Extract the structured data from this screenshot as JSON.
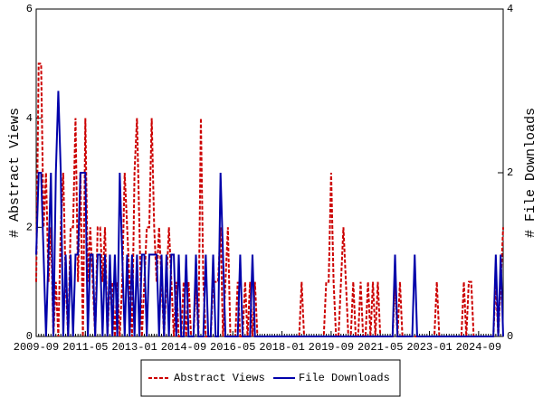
{
  "chart_data": {
    "type": "line",
    "x": [
      "2009-09",
      "2009-10",
      "2009-11",
      "2009-12",
      "2010-01",
      "2010-02",
      "2010-03",
      "2010-04",
      "2010-05",
      "2010-06",
      "2010-07",
      "2010-08",
      "2010-09",
      "2010-10",
      "2010-11",
      "2010-12",
      "2011-01",
      "2011-02",
      "2011-03",
      "2011-04",
      "2011-05",
      "2011-06",
      "2011-07",
      "2011-08",
      "2011-09",
      "2011-10",
      "2011-11",
      "2011-12",
      "2012-01",
      "2012-02",
      "2012-03",
      "2012-04",
      "2012-05",
      "2012-06",
      "2012-07",
      "2012-08",
      "2012-09",
      "2012-10",
      "2012-11",
      "2012-12",
      "2013-01",
      "2013-02",
      "2013-03",
      "2013-04",
      "2013-05",
      "2013-06",
      "2013-07",
      "2013-08",
      "2013-09",
      "2013-10",
      "2013-11",
      "2013-12",
      "2014-01",
      "2014-02",
      "2014-03",
      "2014-04",
      "2014-05",
      "2014-06",
      "2014-07",
      "2014-08",
      "2014-09",
      "2014-10",
      "2014-11",
      "2014-12",
      "2015-01",
      "2015-02",
      "2015-03",
      "2015-04",
      "2015-05",
      "2015-06",
      "2015-07",
      "2015-08",
      "2015-09",
      "2015-10",
      "2015-11",
      "2015-12",
      "2016-01",
      "2016-02",
      "2016-03",
      "2016-04",
      "2016-05",
      "2016-06",
      "2016-07",
      "2016-08",
      "2016-09",
      "2016-10",
      "2016-11",
      "2016-12",
      "2017-01",
      "2017-02",
      "2017-03",
      "2017-04",
      "2017-05",
      "2017-06",
      "2017-07",
      "2017-08",
      "2017-09",
      "2017-10",
      "2017-11",
      "2017-12",
      "2018-01",
      "2018-02",
      "2018-03",
      "2018-04",
      "2018-05",
      "2018-06",
      "2018-07",
      "2018-08",
      "2018-09",
      "2018-10",
      "2018-11",
      "2018-12",
      "2019-01",
      "2019-02",
      "2019-03",
      "2019-04",
      "2019-05",
      "2019-06",
      "2019-07",
      "2019-08",
      "2019-09",
      "2019-10",
      "2019-11",
      "2019-12",
      "2020-01",
      "2020-02",
      "2020-03",
      "2020-04",
      "2020-05",
      "2020-06",
      "2020-07",
      "2020-08",
      "2020-09",
      "2020-10",
      "2020-11",
      "2020-12",
      "2021-01",
      "2021-02",
      "2021-03",
      "2021-04",
      "2021-05",
      "2021-06",
      "2021-07",
      "2021-08",
      "2021-09",
      "2021-10",
      "2021-11",
      "2021-12",
      "2022-01",
      "2022-02",
      "2022-03",
      "2022-04",
      "2022-05",
      "2022-06",
      "2022-07",
      "2022-08",
      "2022-09",
      "2022-10",
      "2022-11",
      "2022-12",
      "2023-01",
      "2023-02",
      "2023-03",
      "2023-04",
      "2023-05",
      "2023-06",
      "2023-07",
      "2023-08",
      "2023-09",
      "2023-10",
      "2023-11",
      "2023-12",
      "2024-01",
      "2024-02",
      "2024-03",
      "2024-04",
      "2024-05",
      "2024-06",
      "2024-07",
      "2024-08",
      "2024-09",
      "2024-10",
      "2024-11",
      "2024-12",
      "2025-01",
      "2025-02",
      "2025-03",
      "2025-04",
      "2025-05",
      "2025-06",
      "2025-07"
    ],
    "xticks": [
      "2009-09",
      "2011-05",
      "2013-01",
      "2014-09",
      "2016-05",
      "2018-01",
      "2019-09",
      "2021-05",
      "2023-01",
      "2024-09"
    ],
    "ylabel": "# Abstract Views",
    "y2label": "# File Downloads",
    "ylim": [
      0,
      6
    ],
    "yticks": [
      0,
      2,
      4,
      6
    ],
    "y2lim": [
      0,
      4
    ],
    "y2ticks": [
      0,
      2,
      4
    ],
    "series": [
      {
        "name": "Abstract Views",
        "color": "#cc0000",
        "dashed": true,
        "values": [
          1,
          5,
          5,
          2,
          3,
          1,
          2,
          0,
          1,
          0,
          2,
          3,
          1,
          0,
          2,
          2,
          4,
          1,
          3,
          0,
          4,
          1,
          2,
          1,
          0,
          2,
          2,
          1,
          2,
          0,
          1,
          1,
          0,
          1,
          0,
          1,
          3,
          2,
          1,
          0,
          3,
          4,
          2,
          0,
          1,
          2,
          2,
          4,
          2,
          1,
          2,
          1,
          0,
          1,
          2,
          1,
          0,
          1,
          0,
          0,
          1,
          0,
          1,
          0,
          0,
          1,
          0,
          4,
          1,
          0,
          0,
          0,
          1,
          1,
          1,
          2,
          0,
          1,
          2,
          0,
          0,
          0,
          1,
          0,
          0,
          1,
          0,
          1,
          0,
          1,
          0,
          0,
          0,
          0,
          0,
          0,
          0,
          0,
          0,
          0,
          0,
          0,
          0,
          0,
          0,
          0,
          0,
          0,
          1,
          0,
          0,
          0,
          0,
          0,
          0,
          0,
          0,
          0,
          1,
          1,
          3,
          1,
          0,
          0,
          1,
          2,
          1,
          0,
          0,
          1,
          0,
          0,
          1,
          0,
          0,
          1,
          0,
          1,
          0,
          1,
          0,
          0,
          0,
          0,
          0,
          0,
          1,
          0,
          1,
          0,
          0,
          0,
          0,
          0,
          0,
          0,
          0,
          0,
          0,
          0,
          0,
          0,
          0,
          1,
          0,
          0,
          0,
          0,
          0,
          0,
          0,
          0,
          0,
          0,
          1,
          0,
          1,
          1,
          0,
          0,
          0,
          0,
          0,
          0,
          0,
          0,
          0,
          1,
          0,
          1,
          2
        ]
      },
      {
        "name": "File Downloads",
        "color": "#0000aa",
        "axis": "y2",
        "values": [
          1,
          2,
          2,
          1,
          0,
          1,
          2,
          0,
          2,
          3,
          2,
          0,
          1,
          0,
          1,
          0,
          1,
          1,
          2,
          2,
          2,
          0,
          1,
          1,
          0,
          1,
          1,
          0,
          1,
          0,
          1,
          0,
          1,
          0,
          2,
          1,
          0,
          1,
          0,
          1,
          0,
          1,
          0,
          1,
          1,
          0,
          1,
          1,
          1,
          1,
          0,
          1,
          0,
          1,
          0,
          1,
          1,
          0,
          1,
          0,
          0,
          1,
          0,
          0,
          0,
          1,
          0,
          0,
          0,
          1,
          0,
          0,
          1,
          0,
          0,
          2,
          1,
          0,
          0,
          0,
          0,
          0,
          0,
          1,
          0,
          0,
          0,
          0,
          1,
          0,
          0,
          0,
          0,
          0,
          0,
          0,
          0,
          0,
          0,
          0,
          0,
          0,
          0,
          0,
          0,
          0,
          0,
          0,
          0,
          0,
          0,
          0,
          0,
          0,
          0,
          0,
          0,
          0,
          0,
          0,
          0,
          0,
          0,
          0,
          0,
          0,
          0,
          0,
          0,
          0,
          0,
          0,
          0,
          0,
          0,
          0,
          0,
          0,
          0,
          0,
          0,
          0,
          0,
          0,
          0,
          0,
          1,
          0,
          0,
          0,
          0,
          0,
          0,
          0,
          1,
          0,
          0,
          0,
          0,
          0,
          0,
          0,
          0,
          0,
          0,
          0,
          0,
          0,
          0,
          0,
          0,
          0,
          0,
          0,
          0,
          0,
          0,
          0,
          0,
          0,
          0,
          0,
          0,
          0,
          0,
          0,
          0,
          1,
          0,
          1,
          0
        ]
      }
    ]
  }
}
